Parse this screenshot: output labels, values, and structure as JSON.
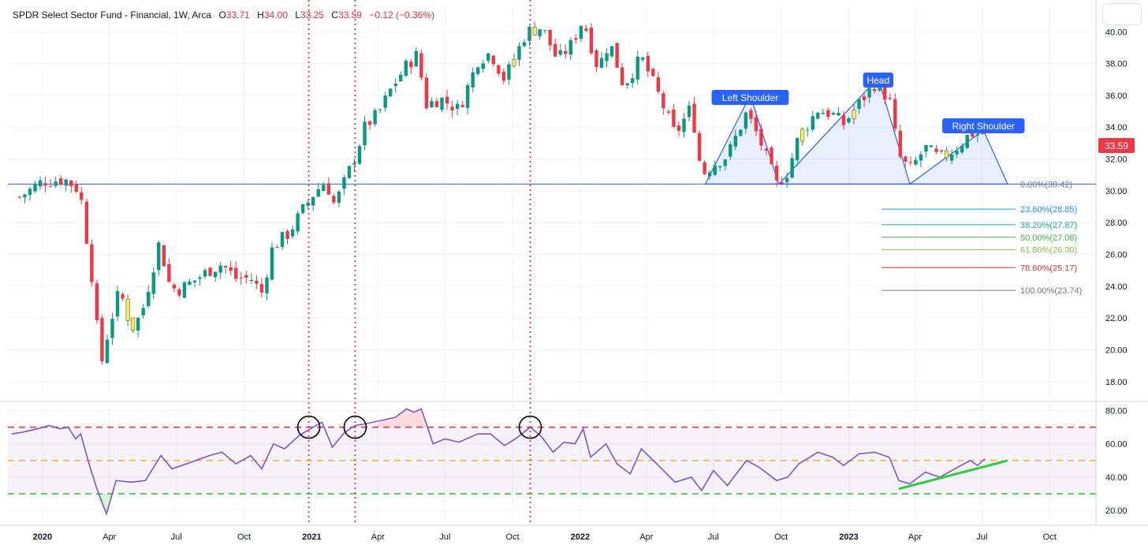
{
  "header": {
    "title": "SPDR Select Sector Fund - Financial, 1W, Arca",
    "open_label": "O",
    "open": "33.71",
    "high_label": "H",
    "high": "34.00",
    "low_label": "L",
    "low": "33.25",
    "close_label": "C",
    "close": "33.59",
    "change": "−0.12 (−0.36%)"
  },
  "price_badge": "33.59",
  "colors": {
    "up": "#089981",
    "down": "#f23645",
    "highlight": "#f5f24a",
    "rsi_line": "#7e57c2",
    "pattern": "#2962ff",
    "vline": "#e8323c",
    "trend": "#2ecc40"
  },
  "chart_data": [
    {
      "type": "candlestick",
      "title": "SPDR Select Sector Fund - Financial, 1W, Arca",
      "x_axis_labels": [
        "2020",
        "Apr",
        "Jul",
        "Oct",
        "2021",
        "Apr",
        "Jul",
        "Oct",
        "2022",
        "Apr",
        "Jul",
        "Oct",
        "2023",
        "Apr",
        "Jul",
        "Oct"
      ],
      "y_ticks": [
        18,
        20,
        22,
        24,
        26,
        28,
        30,
        32,
        34,
        36,
        38,
        40
      ],
      "ylim": [
        16.9,
        41.6
      ],
      "close_path": [
        [
          "2019-12-01",
          29.6
        ],
        [
          "2020-01-01",
          30.6
        ],
        [
          "2020-02-01",
          30.7
        ],
        [
          "2020-02-21",
          30.0
        ],
        [
          "2020-03-01",
          27.0
        ],
        [
          "2020-03-10",
          24.0
        ],
        [
          "2020-03-20",
          18.9
        ],
        [
          "2020-04-01",
          21.5
        ],
        [
          "2020-04-15",
          23.8
        ],
        [
          "2020-05-01",
          21.3
        ],
        [
          "2020-05-15",
          22.3
        ],
        [
          "2020-06-08",
          26.8
        ],
        [
          "2020-06-20",
          24.3
        ],
        [
          "2020-07-01",
          23.7
        ],
        [
          "2020-07-20",
          24.2
        ],
        [
          "2020-08-15",
          25.0
        ],
        [
          "2020-09-01",
          25.4
        ],
        [
          "2020-09-20",
          24.5
        ],
        [
          "2020-10-10",
          24.5
        ],
        [
          "2020-10-25",
          23.6
        ],
        [
          "2020-11-09",
          26.5
        ],
        [
          "2020-11-30",
          27.3
        ],
        [
          "2020-12-20",
          28.8
        ],
        [
          "2021-01-05",
          29.9
        ],
        [
          "2021-01-20",
          30.6
        ],
        [
          "2021-02-01",
          29.1
        ],
        [
          "2021-02-15",
          30.6
        ],
        [
          "2021-03-01",
          32.2
        ],
        [
          "2021-03-15",
          34.1
        ],
        [
          "2021-04-01",
          34.8
        ],
        [
          "2021-04-20",
          36.5
        ],
        [
          "2021-05-10",
          37.9
        ],
        [
          "2021-05-25",
          38.6
        ],
        [
          "2021-06-05",
          35.4
        ],
        [
          "2021-06-25",
          35.8
        ],
        [
          "2021-07-20",
          35.1
        ],
        [
          "2021-08-15",
          38.2
        ],
        [
          "2021-09-01",
          38.7
        ],
        [
          "2021-09-20",
          37.0
        ],
        [
          "2021-10-05",
          38.5
        ],
        [
          "2021-10-20",
          40.0
        ],
        [
          "2021-11-10",
          40.3
        ],
        [
          "2021-12-01",
          38.2
        ],
        [
          "2021-12-20",
          39.2
        ],
        [
          "2022-01-05",
          40.8
        ],
        [
          "2022-01-25",
          37.7
        ],
        [
          "2022-02-10",
          39.4
        ],
        [
          "2022-03-01",
          36.6
        ],
        [
          "2022-03-25",
          38.4
        ],
        [
          "2022-04-15",
          36.3
        ],
        [
          "2022-05-10",
          33.5
        ],
        [
          "2022-06-01",
          35.3
        ],
        [
          "2022-06-15",
          31.0
        ],
        [
          "2022-07-01",
          31.7
        ],
        [
          "2022-07-20",
          32.2
        ],
        [
          "2022-08-15",
          34.9
        ],
        [
          "2022-09-01",
          33.3
        ],
        [
          "2022-09-25",
          30.4
        ],
        [
          "2022-10-10",
          31.2
        ],
        [
          "2022-10-25",
          33.4
        ],
        [
          "2022-11-20",
          35.1
        ],
        [
          "2022-12-10",
          34.8
        ],
        [
          "2022-12-25",
          34.2
        ],
        [
          "2023-01-15",
          35.5
        ],
        [
          "2023-02-05",
          36.7
        ],
        [
          "2023-02-25",
          35.8
        ],
        [
          "2023-03-10",
          32.2
        ],
        [
          "2023-03-25",
          31.3
        ],
        [
          "2023-04-15",
          32.7
        ],
        [
          "2023-05-05",
          32.0
        ],
        [
          "2023-05-25",
          32.6
        ],
        [
          "2023-06-15",
          33.6
        ],
        [
          "2023-07-05",
          33.59
        ]
      ],
      "vertical_lines": [
        "2020-12-28",
        "2021-03-01",
        "2021-10-25"
      ],
      "horizontal_line": 30.42,
      "head_and_shoulders": {
        "labels": {
          "left": "Left Shoulder",
          "head": "Head",
          "right": "Right Shoulder"
        },
        "points": [
          [
            "2022-06-20",
            30.42
          ],
          [
            "2022-08-20",
            36.0
          ],
          [
            "2022-09-28",
            30.42
          ],
          [
            "2023-02-10",
            37.1
          ],
          [
            "2023-03-25",
            30.42
          ],
          [
            "2023-07-03",
            33.8
          ],
          [
            "2023-08-05",
            30.42
          ]
        ]
      },
      "fibonacci": [
        {
          "label": "0.00%(30.42)",
          "value": 30.42,
          "color": "#787b86"
        },
        {
          "label": "23.60%(28.85)",
          "value": 28.85,
          "color": "#2196f3"
        },
        {
          "label": "38.20%(27.87)",
          "value": 27.87,
          "color": "#22ab94"
        },
        {
          "label": "50.00%(27.08)",
          "value": 27.08,
          "color": "#4caf50"
        },
        {
          "label": "61.80%(26.30)",
          "value": 26.3,
          "color": "#8bc34a"
        },
        {
          "label": "78.60%(25.17)",
          "value": 25.17,
          "color": "#e8323c"
        },
        {
          "label": "100.00%(23.74)",
          "value": 23.74,
          "color": "#787b86"
        }
      ]
    },
    {
      "type": "line",
      "x_axis_labels": [
        "2020",
        "Apr",
        "Jul",
        "Oct",
        "2021",
        "Apr",
        "Jul",
        "Oct",
        "2022",
        "Apr",
        "Jul",
        "Oct",
        "2023",
        "Apr",
        "Jul",
        "Oct"
      ],
      "y_ticks": [
        20,
        40,
        60,
        80
      ],
      "ylim": [
        13,
        84
      ],
      "levels": [
        70,
        50,
        30
      ],
      "rsi": [
        [
          "2019-11-20",
          66
        ],
        [
          "2019-12-05",
          67
        ],
        [
          "2019-12-25",
          69
        ],
        [
          "2020-01-10",
          71
        ],
        [
          "2020-01-25",
          69
        ],
        [
          "2020-02-05",
          70
        ],
        [
          "2020-02-15",
          63
        ],
        [
          "2020-02-22",
          66
        ],
        [
          "2020-03-05",
          47
        ],
        [
          "2020-03-15",
          33
        ],
        [
          "2020-03-28",
          18
        ],
        [
          "2020-04-10",
          38
        ],
        [
          "2020-05-01",
          37
        ],
        [
          "2020-05-20",
          38
        ],
        [
          "2020-06-10",
          53
        ],
        [
          "2020-06-25",
          45
        ],
        [
          "2020-07-15",
          48
        ],
        [
          "2020-08-15",
          53
        ],
        [
          "2020-09-01",
          55
        ],
        [
          "2020-09-20",
          48
        ],
        [
          "2020-10-10",
          53
        ],
        [
          "2020-10-25",
          45
        ],
        [
          "2020-11-10",
          60
        ],
        [
          "2020-11-25",
          57
        ],
        [
          "2020-12-15",
          65
        ],
        [
          "2021-01-03",
          70
        ],
        [
          "2021-01-15",
          73
        ],
        [
          "2021-01-29",
          58
        ],
        [
          "2021-02-15",
          67
        ],
        [
          "2021-03-01",
          71
        ],
        [
          "2021-03-15",
          72
        ],
        [
          "2021-04-05",
          74
        ],
        [
          "2021-04-25",
          76
        ],
        [
          "2021-05-10",
          81
        ],
        [
          "2021-05-20",
          79
        ],
        [
          "2021-05-30",
          81
        ],
        [
          "2021-06-15",
          60
        ],
        [
          "2021-07-01",
          63
        ],
        [
          "2021-07-20",
          61
        ],
        [
          "2021-08-15",
          66
        ],
        [
          "2021-09-01",
          66
        ],
        [
          "2021-09-20",
          59
        ],
        [
          "2021-10-05",
          63
        ],
        [
          "2021-10-25",
          70
        ],
        [
          "2021-11-10",
          64
        ],
        [
          "2021-11-25",
          55
        ],
        [
          "2021-12-10",
          61
        ],
        [
          "2021-12-25",
          60
        ],
        [
          "2022-01-05",
          69
        ],
        [
          "2022-01-15",
          52
        ],
        [
          "2022-02-05",
          60
        ],
        [
          "2022-02-20",
          48
        ],
        [
          "2022-03-10",
          42
        ],
        [
          "2022-03-25",
          57
        ],
        [
          "2022-04-15",
          48
        ],
        [
          "2022-05-10",
          37
        ],
        [
          "2022-06-01",
          40
        ],
        [
          "2022-06-15",
          32
        ],
        [
          "2022-07-01",
          44
        ],
        [
          "2022-07-20",
          35
        ],
        [
          "2022-08-15",
          50
        ],
        [
          "2022-09-01",
          46
        ],
        [
          "2022-09-25",
          38
        ],
        [
          "2022-10-10",
          40
        ],
        [
          "2022-10-25",
          48
        ],
        [
          "2022-11-20",
          55
        ],
        [
          "2022-12-10",
          52
        ],
        [
          "2022-12-25",
          47
        ],
        [
          "2023-01-15",
          54
        ],
        [
          "2023-02-05",
          55
        ],
        [
          "2023-02-25",
          52
        ],
        [
          "2023-03-10",
          38
        ],
        [
          "2023-03-25",
          36
        ],
        [
          "2023-04-15",
          43
        ],
        [
          "2023-05-05",
          40
        ],
        [
          "2023-05-25",
          45
        ],
        [
          "2023-06-15",
          50
        ],
        [
          "2023-06-25",
          47
        ],
        [
          "2023-07-05",
          51
        ]
      ],
      "trendline": [
        [
          "2023-03-10",
          33
        ],
        [
          "2023-08-05",
          50
        ]
      ],
      "circled_dates": [
        "2020-12-28",
        "2021-03-01",
        "2021-10-25"
      ]
    }
  ]
}
